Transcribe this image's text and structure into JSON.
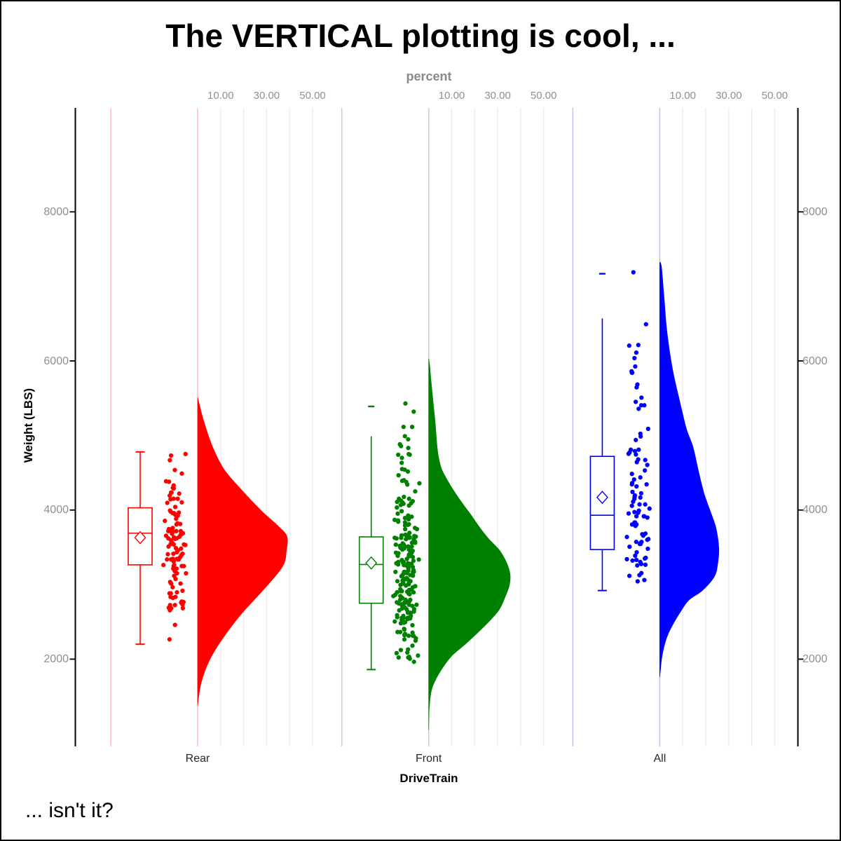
{
  "figure": {
    "title": "The VERTICAL plotting is cool, ...",
    "footnote": "... isn't it?"
  },
  "axes": {
    "top": {
      "label": "percent",
      "tick_labels": [
        "10.00",
        "30.00",
        "50.00"
      ],
      "tick_values": [
        10,
        30,
        50
      ],
      "gridline_values": [
        10,
        20,
        30,
        40,
        50
      ]
    },
    "left": {
      "label": "Weight (LBS)",
      "tick_labels": [
        "2000",
        "4000",
        "6000",
        "8000"
      ],
      "tick_values": [
        2000,
        4000,
        6000,
        8000
      ]
    },
    "right": {
      "tick_labels": [
        "2000",
        "4000",
        "6000",
        "8000"
      ],
      "tick_values": [
        2000,
        4000,
        6000,
        8000
      ]
    },
    "bottom": {
      "label": "DriveTrain",
      "categories": [
        "Rear",
        "Front",
        "All"
      ]
    }
  },
  "colors": {
    "rear": "#ff0000",
    "front": "#008000",
    "all": "#0000ff",
    "rear_faint": "#ffc3c3",
    "front_faint": "#bedabe",
    "all_faint": "#c3c3f0",
    "gridline": "#ececec",
    "axis_line": "#000000",
    "tick_label": "#8f8f8f",
    "box_fill": "#ffffff"
  },
  "chart_data": {
    "type": "raincloud (half-violin + box plot + jittered scatter)",
    "orientation": "vertical",
    "title": "The VERTICAL plotting is cool, ...",
    "xlabel": "DriveTrain",
    "ylabel": "Weight (LBS)",
    "y2label": "percent",
    "categories": [
      "Rear",
      "Front",
      "All"
    ],
    "ylim_approx": [
      830,
      9390
    ],
    "y_ticks": [
      2000,
      4000,
      6000,
      8000
    ],
    "percent_ticks": [
      10,
      30,
      50
    ],
    "percent_gridlines": [
      10,
      20,
      30,
      40,
      50
    ],
    "grid": "vertical-only",
    "legend": "none",
    "groups": [
      {
        "category": "Rear",
        "color": "#ff0000",
        "faint_color": "#ffc3c3",
        "box": {
          "whisker_low": 2200,
          "q1": 3265,
          "median": 3690,
          "mean": 3630,
          "q3": 4030,
          "whisker_high": 4780,
          "cap_top": true,
          "cap_bottom": true,
          "outlier_dashes": []
        },
        "violin_profile_weight_percent": [
          [
            5510,
            0
          ],
          [
            5210,
            2.5
          ],
          [
            4870,
            6.2
          ],
          [
            4550,
            11.4
          ],
          [
            4270,
            19.1
          ],
          [
            3990,
            27.7
          ],
          [
            3800,
            34.5
          ],
          [
            3650,
            38.8
          ],
          [
            3450,
            38.6
          ],
          [
            3240,
            36.9
          ],
          [
            2930,
            28.6
          ],
          [
            2620,
            19.4
          ],
          [
            2300,
            11.4
          ],
          [
            1990,
            5.2
          ],
          [
            1680,
            1.5
          ],
          [
            1380,
            0
          ]
        ],
        "scatter": {
          "n": 110,
          "min": 2265,
          "max": 4770,
          "seed": 101,
          "sample_clamp": [
            2650,
            4770
          ],
          "explicit_points": [
            2460,
            2265
          ]
        }
      },
      {
        "category": "Front",
        "color": "#008000",
        "faint_color": "#bedabe",
        "box": {
          "whisker_low": 1860,
          "q1": 2750,
          "median": 3270,
          "mean": 3290,
          "q3": 3640,
          "whisker_high": 4990,
          "cap_top": false,
          "cap_bottom": true,
          "outlier_dashes": [
            5390
          ]
        },
        "violin_profile_weight_percent": [
          [
            6030,
            0
          ],
          [
            5930,
            0.5
          ],
          [
            5810,
            0.8
          ],
          [
            5490,
            1.8
          ],
          [
            5180,
            2.8
          ],
          [
            4870,
            3.6
          ],
          [
            4710,
            4.3
          ],
          [
            4550,
            5.6
          ],
          [
            4370,
            8.7
          ],
          [
            4240,
            11.3
          ],
          [
            4080,
            14.9
          ],
          [
            3930,
            18.5
          ],
          [
            3770,
            22.1
          ],
          [
            3610,
            26.2
          ],
          [
            3460,
            30.8
          ],
          [
            3300,
            33.8
          ],
          [
            3140,
            35.4
          ],
          [
            2990,
            35.1
          ],
          [
            2830,
            33.2
          ],
          [
            2670,
            30.8
          ],
          [
            2520,
            26.7
          ],
          [
            2360,
            21.5
          ],
          [
            2200,
            15.9
          ],
          [
            2050,
            10.2
          ],
          [
            1890,
            6.2
          ],
          [
            1730,
            3.1
          ],
          [
            1580,
            1.2
          ],
          [
            1360,
            0.3
          ],
          [
            1050,
            0
          ]
        ],
        "scatter": {
          "n": 226,
          "min": 1855,
          "max": 5430,
          "seed": 202,
          "sample_clamp": [
            1855,
            5150
          ],
          "explicit_points": [
            5430,
            5320
          ]
        }
      },
      {
        "category": "All",
        "color": "#0000ff",
        "faint_color": "#c3c3f0",
        "box": {
          "whisker_low": 2920,
          "q1": 3470,
          "median": 3930,
          "mean": 4170,
          "q3": 4720,
          "whisker_high": 6570,
          "cap_top": false,
          "cap_bottom": true,
          "outlier_dashes": [
            7170
          ]
        },
        "violin_profile_weight_percent": [
          [
            7330,
            0
          ],
          [
            7250,
            0.8
          ],
          [
            6800,
            2
          ],
          [
            6400,
            3.1
          ],
          [
            5900,
            5.5
          ],
          [
            5470,
            8.6
          ],
          [
            5100,
            11.5
          ],
          [
            4840,
            14.5
          ],
          [
            4500,
            17
          ],
          [
            4210,
            19.4
          ],
          [
            3900,
            23
          ],
          [
            3740,
            24.6
          ],
          [
            3490,
            25.7
          ],
          [
            3300,
            25.3
          ],
          [
            3110,
            23.8
          ],
          [
            2920,
            18.5
          ],
          [
            2790,
            12.6
          ],
          [
            2630,
            8.9
          ],
          [
            2470,
            5.8
          ],
          [
            2320,
            3.4
          ],
          [
            2160,
            1.8
          ],
          [
            2000,
            0.8
          ],
          [
            1850,
            0.3
          ],
          [
            1760,
            0
          ]
        ],
        "scatter": {
          "n": 92,
          "min": 2900,
          "max": 7190,
          "seed": 303,
          "sample_clamp": [
            2900,
            6600
          ],
          "explicit_points": [
            7190
          ]
        }
      }
    ]
  }
}
